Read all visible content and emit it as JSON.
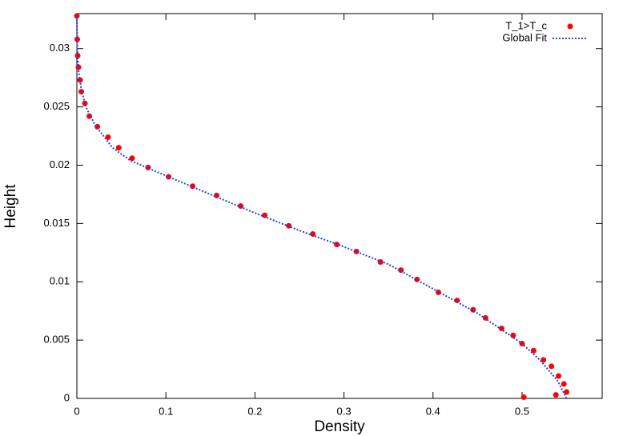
{
  "chart_data": {
    "type": "scatter",
    "xlabel": "Density",
    "ylabel": "Height",
    "xlim": [
      0,
      0.59
    ],
    "ylim": [
      0,
      0.033
    ],
    "xticks": [
      0,
      0.1,
      0.2,
      0.3,
      0.4,
      0.5
    ],
    "yticks": [
      0,
      0.005,
      0.01,
      0.015,
      0.02,
      0.025,
      0.03
    ],
    "legend": "top-right",
    "series": [
      {
        "name": "T_1>T_c",
        "color": "#ff0000",
        "style": "points",
        "x": [
          0.502,
          0.538,
          0.55,
          0.547,
          0.541,
          0.533,
          0.524,
          0.513,
          0.5,
          0.49,
          0.477,
          0.459,
          0.445,
          0.427,
          0.406,
          0.382,
          0.364,
          0.341,
          0.314,
          0.292,
          0.265,
          0.238,
          0.211,
          0.184,
          0.157,
          0.13,
          0.103,
          0.08,
          0.062,
          0.047,
          0.035,
          0.023,
          0.014,
          0.009,
          0.005,
          0.0036,
          0.0018,
          0.0009,
          0.0004,
          0
        ],
        "values": [
          0.0001,
          0.0003,
          0.00055,
          0.00124,
          0.00192,
          0.00275,
          0.0033,
          0.0041,
          0.0047,
          0.0054,
          0.006,
          0.0069,
          0.0076,
          0.0084,
          0.0091,
          0.0102,
          0.011,
          0.0117,
          0.0126,
          0.0132,
          0.0141,
          0.0148,
          0.0157,
          0.0165,
          0.0174,
          0.0182,
          0.019,
          0.0198,
          0.0206,
          0.0215,
          0.0224,
          0.0233,
          0.0242,
          0.0253,
          0.0263,
          0.0273,
          0.0284,
          0.0294,
          0.0308,
          0.0328
        ]
      },
      {
        "name": "Global Fit",
        "color": "#2244dd",
        "style": "dotted-line",
        "x": [
          0.55,
          0.54,
          0.52,
          0.5,
          0.45,
          0.4,
          0.35,
          0.3,
          0.25,
          0.2,
          0.15,
          0.1,
          0.06,
          0.04,
          0.02,
          0.01,
          0.005,
          0.002,
          0.0005,
          0
        ],
        "values": [
          0,
          0.0015,
          0.0033,
          0.0047,
          0.0073,
          0.0094,
          0.0115,
          0.013,
          0.0144,
          0.0159,
          0.0175,
          0.0191,
          0.0204,
          0.0215,
          0.0235,
          0.025,
          0.0265,
          0.028,
          0.03,
          0.0328
        ]
      }
    ]
  }
}
